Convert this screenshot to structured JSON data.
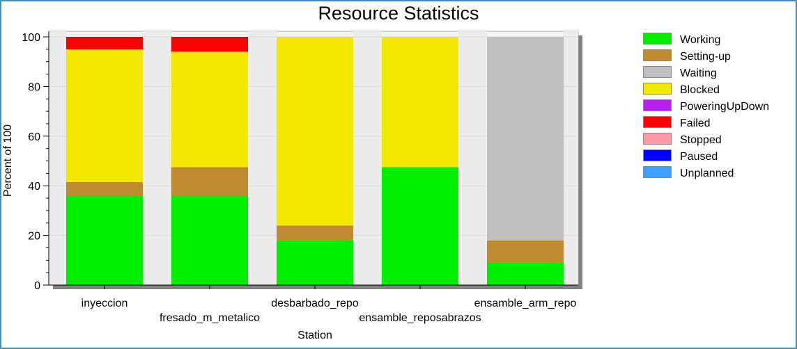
{
  "chart_data": {
    "type": "bar",
    "stacked": true,
    "title": "Resource Statistics",
    "xlabel": "Station",
    "ylabel": "Percent of 100",
    "ylim": [
      0,
      100
    ],
    "yticks": [
      0,
      20,
      40,
      60,
      80,
      100
    ],
    "grid": true,
    "legend_position": "right",
    "categories": [
      "inyeccion",
      "fresado_m_metalico",
      "desbarbado_repo",
      "ensamble_reposabrazos",
      "ensamble_arm_repo"
    ],
    "series": [
      {
        "name": "Working",
        "color": "#00ee00",
        "values": [
          36,
          36,
          18,
          47.5,
          9
        ]
      },
      {
        "name": "Setting-up",
        "color": "#c08a30",
        "values": [
          5.5,
          11.5,
          6,
          0,
          9
        ]
      },
      {
        "name": "Waiting",
        "color": "#c0c0c0",
        "values": [
          0,
          0,
          0,
          0,
          82
        ]
      },
      {
        "name": "Blocked",
        "color": "#f2e800",
        "values": [
          53.5,
          46.5,
          76,
          52.5,
          0
        ]
      },
      {
        "name": "PoweringUpDown",
        "color": "#b620f0",
        "values": [
          0,
          0,
          0,
          0,
          0
        ]
      },
      {
        "name": "Failed",
        "color": "#ff0000",
        "values": [
          5,
          6,
          0,
          0,
          0
        ]
      },
      {
        "name": "Stopped",
        "color": "#ff9aa8",
        "values": [
          0,
          0,
          0,
          0,
          0
        ]
      },
      {
        "name": "Paused",
        "color": "#0000ff",
        "values": [
          0,
          0,
          0,
          0,
          0
        ]
      },
      {
        "name": "Unplanned",
        "color": "#3fa0ff",
        "values": [
          0,
          0,
          0,
          0,
          0
        ]
      }
    ]
  }
}
